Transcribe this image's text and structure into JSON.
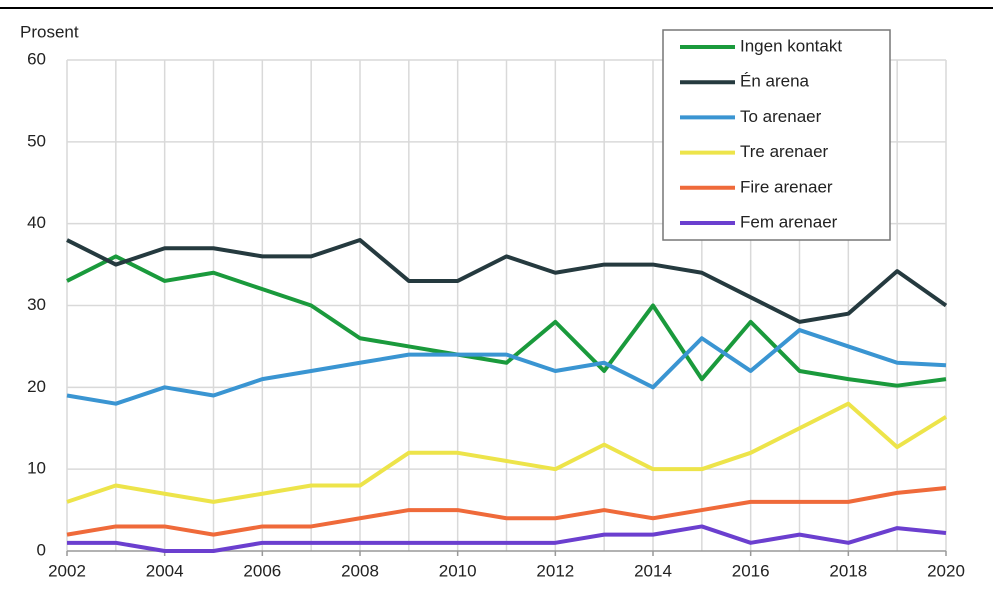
{
  "chart_data": {
    "type": "line",
    "y_label": "Prosent",
    "x": [
      2002,
      2003,
      2004,
      2005,
      2006,
      2007,
      2008,
      2009,
      2010,
      2011,
      2012,
      2013,
      2014,
      2015,
      2016,
      2017,
      2018,
      2019,
      2020
    ],
    "xlim": [
      2002,
      2020
    ],
    "xticks": [
      2002,
      2004,
      2006,
      2008,
      2010,
      2012,
      2014,
      2016,
      2018,
      2020
    ],
    "ylim": [
      0,
      60
    ],
    "yticks": [
      0,
      10,
      20,
      30,
      40,
      50,
      60
    ],
    "grid": true,
    "legend": "upper right",
    "series": [
      {
        "name": "Ingen kontakt",
        "color": "#1a9a3c",
        "values": [
          33,
          36,
          33,
          34,
          32,
          30,
          26,
          25,
          24,
          23,
          28,
          22,
          30,
          21,
          28,
          22,
          21,
          20.2,
          21
        ]
      },
      {
        "name": "Én arena",
        "color": "#253a3f",
        "values": [
          38,
          35,
          37,
          37,
          36,
          36,
          38,
          33,
          33,
          36,
          34,
          35,
          35,
          34,
          31,
          28,
          29,
          34.2,
          30
        ]
      },
      {
        "name": "To arenaer",
        "color": "#3a95d2",
        "values": [
          19,
          18,
          20,
          19,
          21,
          22,
          23,
          24,
          24,
          24,
          22,
          23,
          20,
          26,
          22,
          27,
          25,
          23,
          22.7
        ]
      },
      {
        "name": "Tre arenaer",
        "color": "#ede44a",
        "values": [
          6,
          8,
          7,
          6,
          7,
          8,
          8,
          12,
          12,
          11,
          10,
          13,
          10,
          10,
          12,
          15,
          18,
          12.7,
          16.4
        ]
      },
      {
        "name": "Fire arenaer",
        "color": "#ef6a3a",
        "values": [
          2,
          3,
          3,
          2,
          3,
          3,
          4,
          5,
          5,
          4,
          4,
          5,
          4,
          5,
          6,
          6,
          6,
          7.1,
          7.7
        ]
      },
      {
        "name": "Fem arenaer",
        "color": "#6b3fcf",
        "values": [
          1,
          1,
          0,
          0,
          1,
          1,
          1,
          1,
          1,
          1,
          1,
          2,
          2,
          3,
          1,
          2,
          1,
          2.8,
          2.2
        ]
      }
    ]
  }
}
